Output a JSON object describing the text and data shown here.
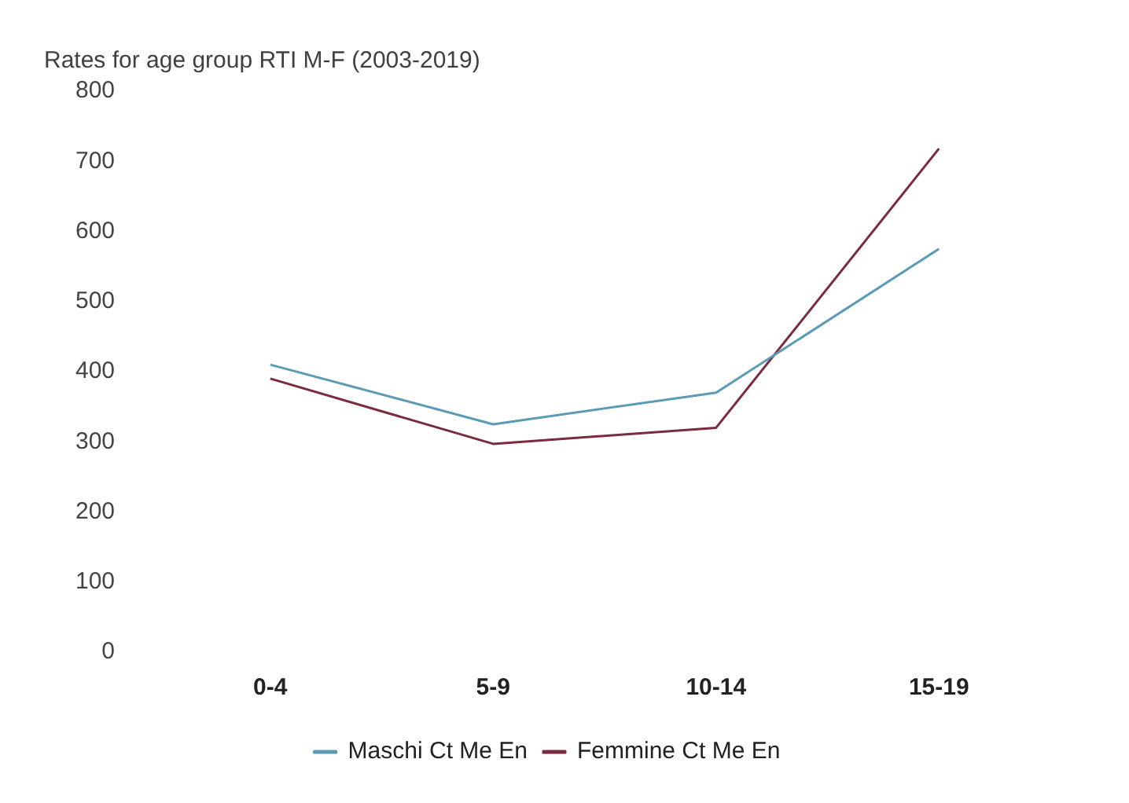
{
  "chart_data": {
    "type": "line",
    "title": "Rates for age group RTI M-F (2003-2019)",
    "categories": [
      "0-4",
      "5-9",
      "10-14",
      "15-19"
    ],
    "series": [
      {
        "name": "Maschi Ct Me En",
        "color": "#5b9bb5",
        "values": [
          410,
          325,
          370,
          575
        ]
      },
      {
        "name": "Femmine Ct Me En",
        "color": "#7b2b3f",
        "values": [
          390,
          297,
          320,
          718
        ]
      }
    ],
    "ylim": [
      0,
      800
    ],
    "yticks": [
      0,
      100,
      200,
      300,
      400,
      500,
      600,
      700,
      800
    ],
    "grid": false,
    "legend": "bottom",
    "marker": "none"
  }
}
